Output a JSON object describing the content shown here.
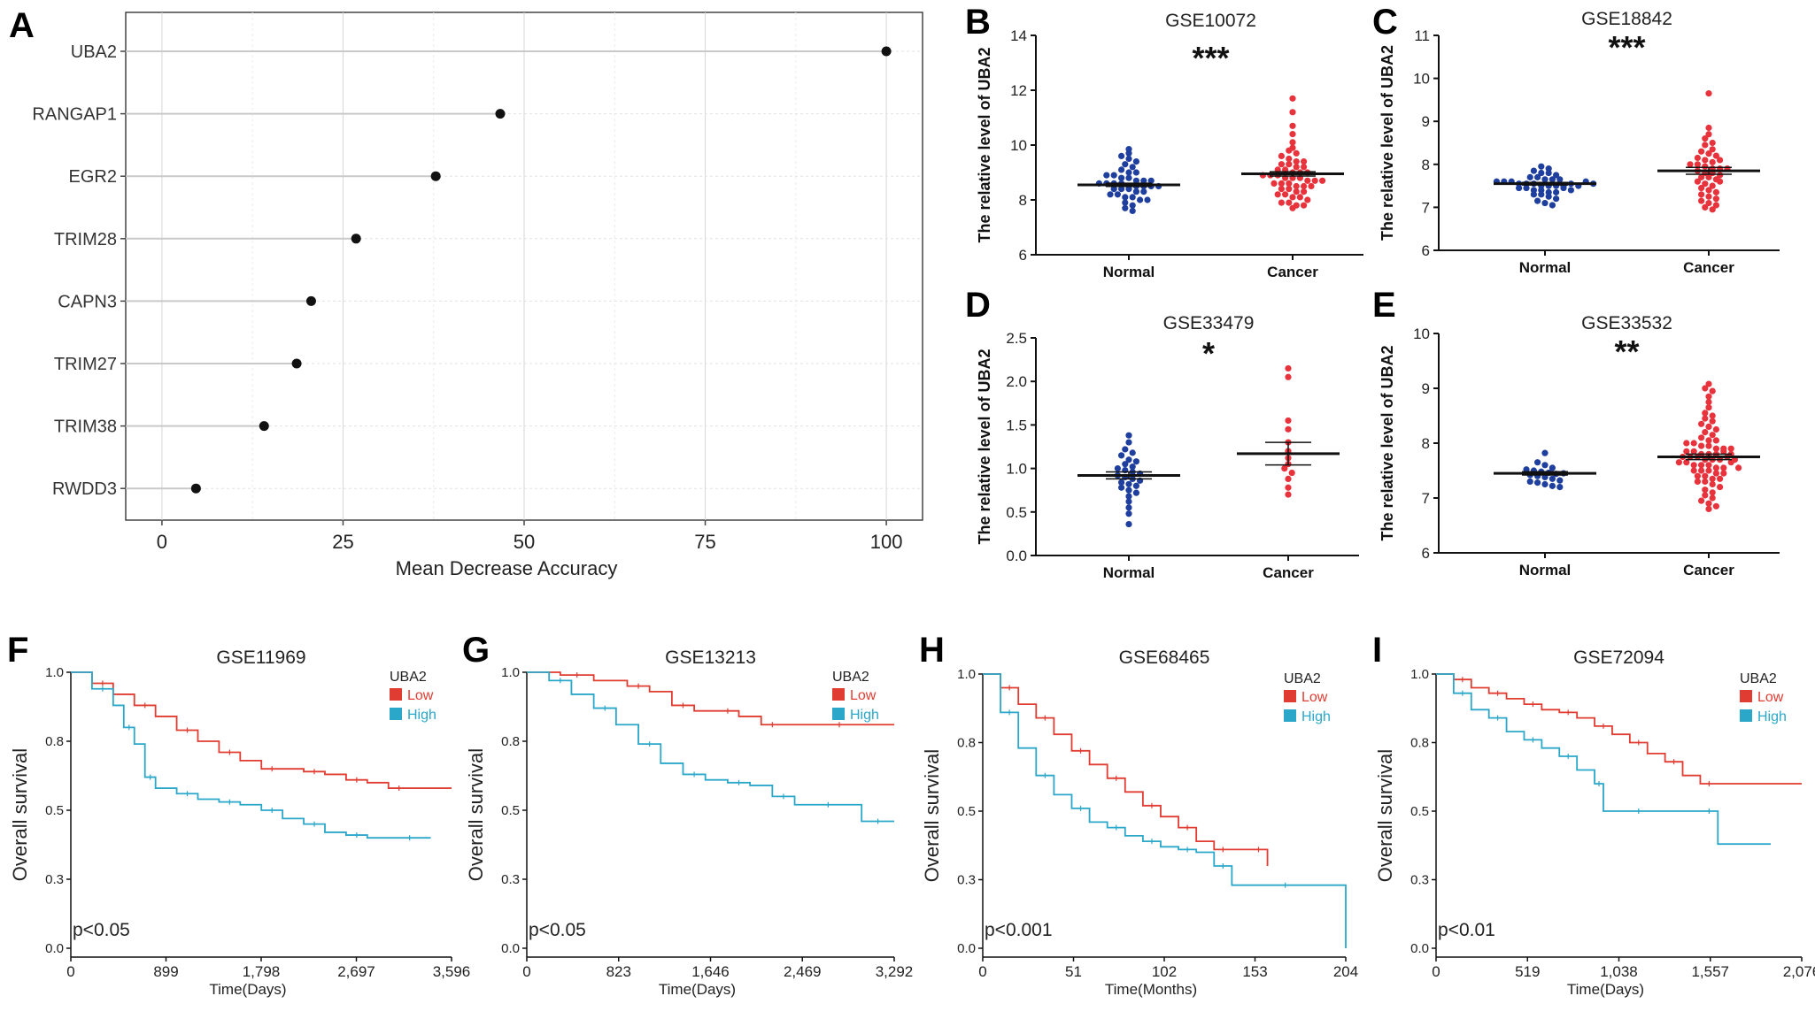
{
  "chart_data": [
    {
      "panel": "A",
      "type": "scatter",
      "variant": "dot-plot",
      "title": "",
      "xlabel": "Mean Decrease Accuracy",
      "ylabel": "",
      "xlim": [
        -5,
        105
      ],
      "xticks": [
        "0",
        "25",
        "50",
        "75",
        "100"
      ],
      "grid": true,
      "categories": [
        "UBA2",
        "RANGAP1",
        "EGR2",
        "TRIM28",
        "CAPN3",
        "TRIM27",
        "TRIM38",
        "RWDD3"
      ],
      "values": [
        100,
        46.7,
        37.8,
        26.8,
        20.6,
        18.6,
        14.1,
        4.7
      ]
    },
    {
      "panel": "B",
      "type": "scatter",
      "variant": "dot-strip",
      "title": "GSE10072",
      "ylabel": "The relative level of UBA2",
      "categories": [
        "Normal",
        "Cancer"
      ],
      "ylim": [
        6,
        14
      ],
      "yticks": [
        "6",
        "8",
        "10",
        "12",
        "14"
      ],
      "significance": "***",
      "colors": {
        "Normal": "#1f3f9e",
        "Cancer": "#e8323c"
      },
      "series": [
        {
          "name": "Normal",
          "mean": 8.55,
          "sem": 0.06,
          "values": [
            9.85,
            9.7,
            9.6,
            9.5,
            9.4,
            9.3,
            9.2,
            9.1,
            9.0,
            9.0,
            8.9,
            8.9,
            8.8,
            8.8,
            8.7,
            8.7,
            8.7,
            8.6,
            8.6,
            8.6,
            8.6,
            8.5,
            8.5,
            8.5,
            8.5,
            8.5,
            8.4,
            8.4,
            8.4,
            8.3,
            8.3,
            8.2,
            8.2,
            8.1,
            8.1,
            8.0,
            8.0,
            7.9,
            7.8,
            7.7,
            7.6
          ]
        },
        {
          "name": "Cancer",
          "mean": 8.95,
          "sem": 0.08,
          "values": [
            11.7,
            11.2,
            10.7,
            10.4,
            10.1,
            9.9,
            9.8,
            9.7,
            9.6,
            9.5,
            9.4,
            9.4,
            9.3,
            9.3,
            9.2,
            9.2,
            9.1,
            9.1,
            9.0,
            9.0,
            9.0,
            8.9,
            8.9,
            8.9,
            8.8,
            8.8,
            8.8,
            8.7,
            8.7,
            8.7,
            8.6,
            8.6,
            8.6,
            8.5,
            8.5,
            8.5,
            8.4,
            8.4,
            8.3,
            8.3,
            8.2,
            8.2,
            8.1,
            8.1,
            8.0,
            7.9,
            7.9,
            7.8,
            7.8,
            7.7
          ]
        }
      ]
    },
    {
      "panel": "C",
      "type": "scatter",
      "variant": "dot-strip",
      "title": "GSE18842",
      "ylabel": "The relative level of UBA2",
      "categories": [
        "Normal",
        "Cancer"
      ],
      "ylim": [
        6,
        11
      ],
      "yticks": [
        "6",
        "7",
        "8",
        "9",
        "10",
        "11"
      ],
      "significance": "***",
      "colors": {
        "Normal": "#1f3f9e",
        "Cancer": "#e8323c"
      },
      "series": [
        {
          "name": "Normal",
          "mean": 7.55,
          "sem": 0.03,
          "values": [
            7.95,
            7.9,
            7.85,
            7.8,
            7.8,
            7.75,
            7.7,
            7.7,
            7.65,
            7.65,
            7.6,
            7.6,
            7.6,
            7.55,
            7.55,
            7.55,
            7.5,
            7.5,
            7.5,
            7.5,
            7.45,
            7.45,
            7.4,
            7.4,
            7.35,
            7.35,
            7.3,
            7.3,
            7.25,
            7.2,
            7.15,
            7.1,
            7.05,
            7.55,
            7.5,
            7.6,
            7.45,
            7.4,
            7.65,
            7.55
          ]
        },
        {
          "name": "Cancer",
          "mean": 7.85,
          "sem": 0.08,
          "values": [
            9.65,
            8.85,
            8.7,
            8.6,
            8.5,
            8.45,
            8.35,
            8.3,
            8.25,
            8.2,
            8.15,
            8.1,
            8.05,
            8.0,
            8.0,
            7.95,
            7.9,
            7.9,
            7.85,
            7.8,
            7.8,
            7.75,
            7.7,
            7.7,
            7.65,
            7.6,
            7.55,
            7.5,
            7.45,
            7.4,
            7.35,
            7.3,
            7.25,
            7.2,
            7.15,
            7.1,
            7.05,
            7.0,
            6.95,
            7.6,
            7.9,
            8.1
          ]
        }
      ]
    },
    {
      "panel": "D",
      "type": "scatter",
      "variant": "dot-strip",
      "title": "GSE33479",
      "ylabel": "The relative level of UBA2",
      "categories": [
        "Normal",
        "Cancer"
      ],
      "ylim": [
        0,
        2.5
      ],
      "yticks": [
        "0.0",
        "0.5",
        "1.0",
        "1.5",
        "2.0",
        "2.5"
      ],
      "significance": "*",
      "colors": {
        "Normal": "#1f3f9e",
        "Cancer": "#e8323c"
      },
      "series": [
        {
          "name": "Normal",
          "mean": 0.92,
          "sem": 0.04,
          "values": [
            1.38,
            1.3,
            1.22,
            1.18,
            1.15,
            1.1,
            1.08,
            1.05,
            1.02,
            1.0,
            0.98,
            0.96,
            0.94,
            0.92,
            0.9,
            0.88,
            0.86,
            0.84,
            0.82,
            0.8,
            0.78,
            0.75,
            0.72,
            0.68,
            0.62,
            0.55,
            0.48,
            0.36
          ]
        },
        {
          "name": "Cancer",
          "mean": 1.17,
          "sem": 0.13,
          "values": [
            2.15,
            2.05,
            1.55,
            1.45,
            1.3,
            1.2,
            1.12,
            1.05,
            1.0,
            0.95,
            0.88,
            0.78,
            0.7
          ]
        }
      ]
    },
    {
      "panel": "E",
      "type": "scatter",
      "variant": "dot-strip",
      "title": "GSE33532",
      "ylabel": "The relative level of UBA2",
      "categories": [
        "Normal",
        "Cancer"
      ],
      "ylim": [
        6,
        10
      ],
      "yticks": [
        "6",
        "7",
        "8",
        "9",
        "10"
      ],
      "significance": "**",
      "colors": {
        "Normal": "#1f3f9e",
        "Cancer": "#e8323c"
      },
      "series": [
        {
          "name": "Normal",
          "mean": 7.45,
          "sem": 0.03,
          "values": [
            7.82,
            7.65,
            7.6,
            7.55,
            7.52,
            7.5,
            7.48,
            7.46,
            7.44,
            7.42,
            7.4,
            7.38,
            7.35,
            7.32,
            7.3,
            7.28,
            7.25,
            7.22,
            7.2,
            7.45
          ]
        },
        {
          "name": "Cancer",
          "mean": 7.75,
          "sem": 0.05,
          "values": [
            9.08,
            9.0,
            8.95,
            8.85,
            8.75,
            8.65,
            8.55,
            8.5,
            8.45,
            8.4,
            8.35,
            8.3,
            8.25,
            8.2,
            8.15,
            8.1,
            8.05,
            8.0,
            8.0,
            7.95,
            7.95,
            7.9,
            7.9,
            7.85,
            7.85,
            7.8,
            7.8,
            7.8,
            7.75,
            7.75,
            7.75,
            7.7,
            7.7,
            7.7,
            7.65,
            7.65,
            7.6,
            7.6,
            7.6,
            7.55,
            7.55,
            7.5,
            7.5,
            7.5,
            7.45,
            7.45,
            7.4,
            7.4,
            7.35,
            7.35,
            7.3,
            7.3,
            7.25,
            7.2,
            7.15,
            7.1,
            7.05,
            7.0,
            6.95,
            6.9,
            6.85,
            6.8,
            7.75,
            7.9,
            7.65,
            8.05,
            7.55,
            7.85,
            7.7,
            7.8
          ]
        }
      ]
    },
    {
      "panel": "F",
      "type": "line",
      "variant": "kaplan-meier",
      "title": "GSE11969",
      "xlabel": "Time(Days)",
      "ylabel": "Overall survival",
      "xlim": [
        0,
        3596
      ],
      "ylim": [
        0,
        1
      ],
      "xticks": [
        "0",
        "899",
        "1,798",
        "2,697",
        "3,596"
      ],
      "yticks": [
        "0.0",
        "0.3",
        "0.5",
        "0.8",
        "1.0"
      ],
      "legend_title": "UBA2",
      "pvalue": "p<0.05",
      "series": [
        {
          "name": "Low",
          "color": "#e03c31",
          "x": [
            0,
            200,
            400,
            600,
            800,
            1000,
            1200,
            1400,
            1600,
            1800,
            2000,
            2200,
            2400,
            2600,
            2800,
            3000,
            3200,
            3596
          ],
          "y": [
            1.0,
            0.96,
            0.92,
            0.88,
            0.84,
            0.79,
            0.75,
            0.71,
            0.68,
            0.65,
            0.65,
            0.64,
            0.63,
            0.61,
            0.6,
            0.58,
            0.58,
            0.58
          ]
        },
        {
          "name": "High",
          "color": "#2aa7c9",
          "x": [
            0,
            200,
            400,
            500,
            600,
            700,
            800,
            1000,
            1200,
            1400,
            1600,
            1800,
            2000,
            2200,
            2400,
            2600,
            2800,
            3000,
            3400
          ],
          "y": [
            1.0,
            0.94,
            0.88,
            0.8,
            0.74,
            0.62,
            0.58,
            0.56,
            0.54,
            0.53,
            0.52,
            0.5,
            0.47,
            0.45,
            0.42,
            0.41,
            0.4,
            0.4,
            0.4
          ]
        }
      ]
    },
    {
      "panel": "G",
      "type": "line",
      "variant": "kaplan-meier",
      "title": "GSE13213",
      "xlabel": "Time(Days)",
      "ylabel": "Overall survival",
      "xlim": [
        0,
        3292
      ],
      "ylim": [
        0,
        1
      ],
      "xticks": [
        "0",
        "823",
        "1,646",
        "2,469",
        "3,292"
      ],
      "yticks": [
        "0.0",
        "0.3",
        "0.5",
        "0.8",
        "1.0"
      ],
      "legend_title": "UBA2",
      "pvalue": "p<0.05",
      "series": [
        {
          "name": "Low",
          "color": "#e03c31",
          "x": [
            0,
            300,
            600,
            900,
            1100,
            1300,
            1500,
            1700,
            1900,
            2100,
            2300,
            2600,
            3000,
            3292
          ],
          "y": [
            1.0,
            0.99,
            0.97,
            0.95,
            0.93,
            0.88,
            0.86,
            0.86,
            0.84,
            0.81,
            0.81,
            0.81,
            0.81,
            0.81
          ]
        },
        {
          "name": "High",
          "color": "#2aa7c9",
          "x": [
            0,
            200,
            400,
            600,
            800,
            1000,
            1200,
            1400,
            1600,
            1800,
            2000,
            2200,
            2400,
            2600,
            2800,
            3000,
            3292
          ],
          "y": [
            1.0,
            0.97,
            0.92,
            0.87,
            0.81,
            0.74,
            0.67,
            0.63,
            0.61,
            0.6,
            0.59,
            0.55,
            0.52,
            0.52,
            0.52,
            0.46,
            0.46
          ]
        }
      ]
    },
    {
      "panel": "H",
      "type": "line",
      "variant": "kaplan-meier",
      "title": "GSE68465",
      "xlabel": "Time(Months)",
      "ylabel": "Overall survival",
      "xlim": [
        0,
        204
      ],
      "ylim": [
        0,
        1
      ],
      "xticks": [
        "0",
        "51",
        "102",
        "153",
        "204"
      ],
      "yticks": [
        "0.0",
        "0.3",
        "0.5",
        "0.8",
        "1.0"
      ],
      "legend_title": "UBA2",
      "pvalue": "p<0.001",
      "series": [
        {
          "name": "Low",
          "color": "#e03c31",
          "x": [
            0,
            10,
            20,
            30,
            40,
            50,
            60,
            70,
            80,
            90,
            100,
            110,
            120,
            130,
            140,
            150,
            160
          ],
          "y": [
            1.0,
            0.95,
            0.89,
            0.84,
            0.78,
            0.72,
            0.67,
            0.62,
            0.57,
            0.52,
            0.48,
            0.44,
            0.39,
            0.36,
            0.36,
            0.36,
            0.3
          ]
        },
        {
          "name": "High",
          "color": "#2aa7c9",
          "x": [
            0,
            10,
            20,
            30,
            40,
            50,
            60,
            70,
            80,
            90,
            100,
            110,
            120,
            130,
            140,
            160,
            180,
            204
          ],
          "y": [
            1.0,
            0.86,
            0.73,
            0.63,
            0.56,
            0.51,
            0.46,
            0.44,
            0.41,
            0.39,
            0.37,
            0.36,
            0.35,
            0.3,
            0.23,
            0.23,
            0.23,
            0.0
          ]
        }
      ]
    },
    {
      "panel": "I",
      "type": "line",
      "variant": "kaplan-meier",
      "title": "GSE72094",
      "xlabel": "Time(Days)",
      "ylabel": "Overall survival",
      "xlim": [
        0,
        2076
      ],
      "ylim": [
        0,
        1
      ],
      "xticks": [
        "0",
        "519",
        "1,038",
        "1,557",
        "2,076"
      ],
      "yticks": [
        "0.0",
        "0.3",
        "0.5",
        "0.8",
        "1.0"
      ],
      "legend_title": "UBA2",
      "pvalue": "p<0.01",
      "series": [
        {
          "name": "Low",
          "color": "#e03c31",
          "x": [
            0,
            100,
            200,
            300,
            400,
            500,
            600,
            700,
            800,
            900,
            1000,
            1100,
            1200,
            1300,
            1400,
            1500,
            1600,
            2076
          ],
          "y": [
            1.0,
            0.98,
            0.95,
            0.93,
            0.91,
            0.89,
            0.87,
            0.86,
            0.84,
            0.81,
            0.78,
            0.75,
            0.71,
            0.68,
            0.63,
            0.6,
            0.6,
            0.6
          ]
        },
        {
          "name": "High",
          "color": "#2aa7c9",
          "x": [
            0,
            100,
            200,
            300,
            400,
            500,
            600,
            700,
            800,
            900,
            950,
            1000,
            1300,
            1500,
            1600,
            1900
          ],
          "y": [
            1.0,
            0.93,
            0.87,
            0.84,
            0.79,
            0.76,
            0.73,
            0.7,
            0.65,
            0.6,
            0.5,
            0.5,
            0.5,
            0.5,
            0.38,
            0.38
          ]
        }
      ]
    }
  ],
  "panel_letters": [
    "A",
    "B",
    "C",
    "D",
    "E",
    "F",
    "G",
    "H",
    "I"
  ],
  "colors": {
    "normal_dot": "#1f3f9e",
    "cancer_dot": "#e8323c",
    "km_low": "#e03c31",
    "km_high": "#2aa7c9"
  }
}
